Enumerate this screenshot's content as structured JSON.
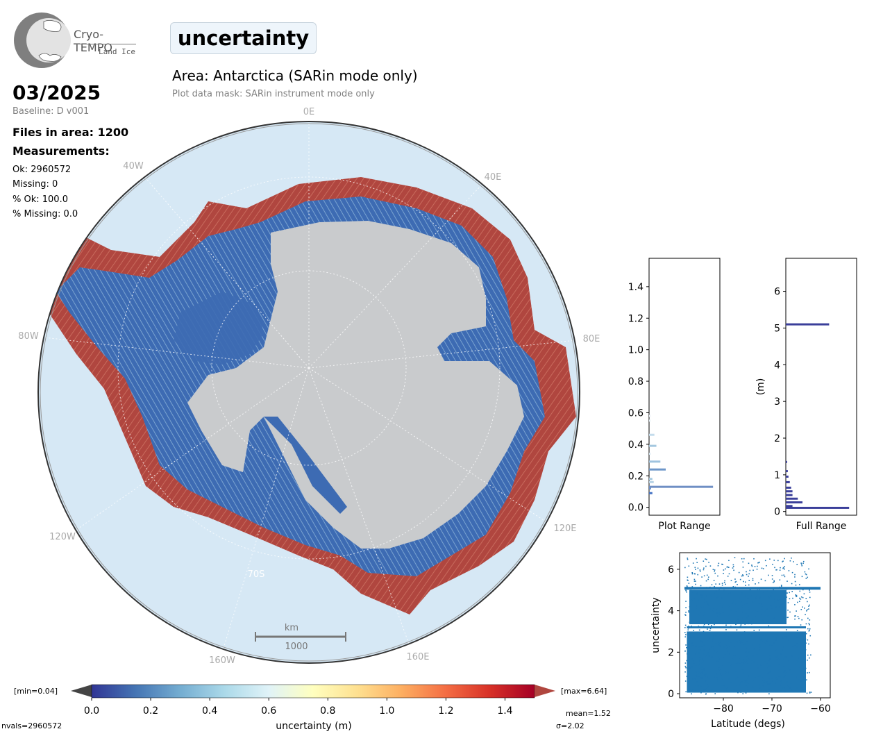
{
  "logo": {
    "name": "Cryo-TEMPO",
    "subtitle": "Land Ice"
  },
  "parameter_title": "uncertainty",
  "area_title": "Area: Antarctica (SARin mode only)",
  "mask_note": "Plot data mask: SARin instrument mode only",
  "date": "03/2025",
  "baseline": "Baseline: D v001",
  "files": "Files in area: 1200",
  "measurements_heading": "Measurements:",
  "stats": {
    "ok": "Ok: 2960572",
    "missing": "Missing: 0",
    "pct_ok": "% Ok: 100.0",
    "pct_missing": "% Missing: 0.0"
  },
  "map": {
    "lon_labels": [
      "0E",
      "40E",
      "80E",
      "120E",
      "160E",
      "160W",
      "120W",
      "80W",
      "40W"
    ],
    "lat_label": "70S",
    "scale_unit": "km",
    "scale_value": "1000",
    "colors": {
      "ocean": "#d6e8f5",
      "ice": "#c9cbcd",
      "high": "#b0463f",
      "low": "#3d6bb3"
    }
  },
  "colorbar": {
    "min_label": "[min=0.04]",
    "max_label": "[max=6.64]",
    "label": "uncertainty (m)",
    "ticks": [
      "0.0",
      "0.2",
      "0.4",
      "0.6",
      "0.8",
      "1.0",
      "1.2",
      "1.4"
    ],
    "range": [
      0,
      1.5
    ],
    "colormap": "RdYlBu_r"
  },
  "summary": {
    "nvals": "nvals=2960572",
    "mean": "mean=1.52",
    "sigma": "σ=2.02"
  },
  "chart_data": [
    {
      "type": "bar",
      "orientation": "horizontal",
      "xlabel": "Plot Range",
      "ylim": [
        -0.05,
        1.58
      ],
      "yticks": [
        "0.0",
        "0.2",
        "0.4",
        "0.6",
        "0.8",
        "1.0",
        "1.2",
        "1.4"
      ],
      "bins": [
        0.09,
        0.12,
        0.13,
        0.16,
        0.18,
        0.24,
        0.29,
        0.34,
        0.39,
        0.46,
        0.55,
        0.58
      ],
      "values": [
        0.05,
        0.03,
        0.96,
        0.07,
        0.05,
        0.25,
        0.17,
        0.02,
        0.11,
        0.08,
        0.02,
        0.02
      ]
    },
    {
      "type": "bar",
      "orientation": "horizontal",
      "xlabel": "Full Range",
      "ylabel": "(m)",
      "ylim": [
        -0.1,
        6.9
      ],
      "yticks": [
        "0",
        "1",
        "2",
        "3",
        "4",
        "5",
        "6"
      ],
      "bins": [
        0.1,
        0.15,
        0.25,
        0.35,
        0.45,
        0.55,
        0.65,
        0.8,
        0.95,
        1.1,
        1.35,
        5.1
      ],
      "values": [
        0.95,
        0.1,
        0.25,
        0.18,
        0.1,
        0.1,
        0.08,
        0.06,
        0.04,
        0.03,
        0.02,
        0.65
      ]
    },
    {
      "type": "scatter",
      "xlabel": "Latitude (degs)",
      "ylabel": "uncertainty",
      "xlim": [
        -89,
        -58
      ],
      "ylim": [
        -0.2,
        6.8
      ],
      "xticks": [
        "−80",
        "−70",
        "−60"
      ],
      "yticks": [
        "0",
        "2",
        "4",
        "6"
      ],
      "color": "#1f77b4"
    }
  ]
}
